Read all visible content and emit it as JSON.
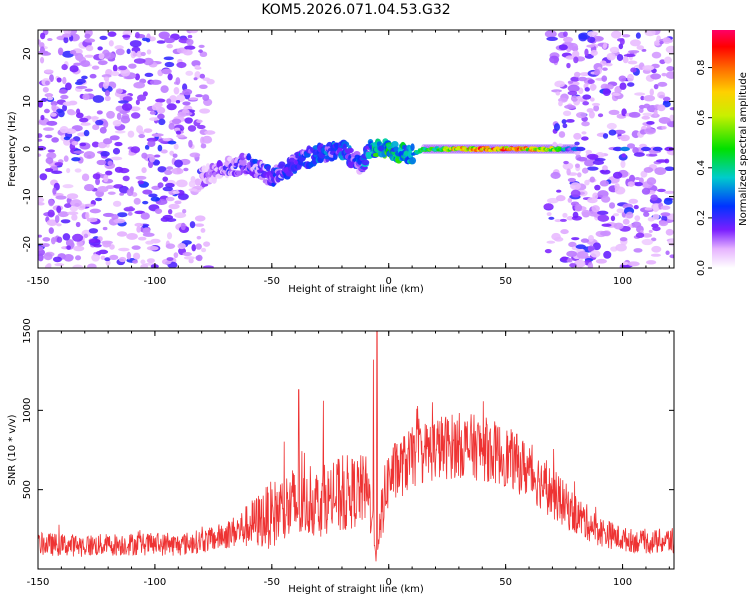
{
  "title": "KOM5.2026.071.04.53.G32",
  "chart_data": [
    {
      "type": "heatmap",
      "name": "spectrogram",
      "xlabel": "Height of straight line (km)",
      "ylabel": "Frequency (Hz)",
      "xlim": [
        -150,
        122
      ],
      "ylim": [
        -25,
        25
      ],
      "xticks": [
        -150,
        -100,
        -50,
        0,
        50,
        100
      ],
      "xtick_labels": [
        "-150",
        "-100",
        "-50",
        "0",
        "50",
        "100"
      ],
      "yticks": [
        -20,
        -10,
        0,
        10,
        20
      ],
      "ytick_labels": [
        "-20",
        "-10",
        "0",
        "10",
        "20"
      ],
      "colorbar": {
        "label": "Normalized spectral amplitude",
        "range": [
          0,
          0.95
        ],
        "ticks": [
          0.0,
          0.2,
          0.4,
          0.6,
          0.8
        ],
        "tick_labels": [
          "0.0",
          "0.2",
          "0.4",
          "0.6",
          "0.8"
        ]
      },
      "features": {
        "noise_regions_km": [
          [
            -150,
            -75
          ],
          [
            68,
            122
          ]
        ],
        "signal_trace": {
          "x_km": [
            -80,
            -70,
            -60,
            -50,
            -40,
            -30,
            -20,
            -15,
            -12,
            -8,
            -5,
            0,
            5,
            10,
            15,
            20,
            30,
            40,
            50,
            60,
            70,
            78
          ],
          "freq_hz": [
            -6,
            -4,
            -3,
            -6,
            -3,
            -1,
            0,
            -2,
            -4,
            0,
            0,
            0,
            -1,
            -1,
            0,
            0,
            0,
            0,
            0,
            0,
            0,
            0
          ],
          "amplitude": [
            0.15,
            0.2,
            0.25,
            0.3,
            0.3,
            0.35,
            0.35,
            0.3,
            0.3,
            0.45,
            0.55,
            0.55,
            0.5,
            0.5,
            0.55,
            0.7,
            0.9,
            0.95,
            0.95,
            0.9,
            0.75,
            0.3
          ]
        },
        "far_trace_x_km": [
          80,
          82,
          98,
          101,
          110,
          115,
          120
        ],
        "far_trace_amplitude": [
          0.3,
          0.2,
          0.2,
          0.3,
          0.2,
          0.2,
          0.15
        ]
      }
    },
    {
      "type": "line",
      "name": "snr",
      "xlabel": "Height of straight line (km)",
      "ylabel": "SNR (10 * v/v)",
      "xlim": [
        -150,
        122
      ],
      "ylim": [
        0,
        1500
      ],
      "xticks": [
        -150,
        -100,
        -50,
        0,
        50,
        100
      ],
      "xtick_labels": [
        "-150",
        "-100",
        "-50",
        "0",
        "50",
        "100"
      ],
      "yticks": [
        500,
        1000,
        1500
      ],
      "ytick_labels": [
        "500",
        "1000",
        "1500"
      ],
      "series": [
        {
          "name": "SNR",
          "color": "#ee3333",
          "envelope_x": [
            -150,
            -130,
            -110,
            -90,
            -75,
            -65,
            -60,
            -55,
            -50,
            -45,
            -40,
            -35,
            -30,
            -25,
            -20,
            -15,
            -10,
            -7,
            -5,
            -3,
            0,
            5,
            10,
            20,
            30,
            40,
            50,
            60,
            70,
            80,
            90,
            100,
            110,
            122
          ],
          "envelope_mean": [
            150,
            140,
            150,
            145,
            180,
            230,
            260,
            290,
            320,
            350,
            370,
            380,
            400,
            420,
            440,
            460,
            480,
            350,
            30,
            350,
            560,
            620,
            680,
            740,
            760,
            740,
            690,
            600,
            460,
            330,
            230,
            180,
            160,
            170
          ],
          "envelope_spread": [
            110,
            110,
            110,
            110,
            120,
            160,
            220,
            280,
            330,
            360,
            400,
            300,
            350,
            320,
            400,
            350,
            350,
            300,
            50,
            300,
            300,
            300,
            300,
            320,
            320,
            320,
            300,
            280,
            250,
            200,
            150,
            120,
            110,
            140
          ],
          "peaks": [
            {
              "x": -38.5,
              "y": 1130
            },
            {
              "x": -28,
              "y": 1060
            },
            {
              "x": -5,
              "y": 1500
            },
            {
              "x": -6.5,
              "y": 1320
            },
            {
              "x": 12,
              "y": 1010
            },
            {
              "x": 42,
              "y": 910
            }
          ]
        }
      ]
    }
  ]
}
